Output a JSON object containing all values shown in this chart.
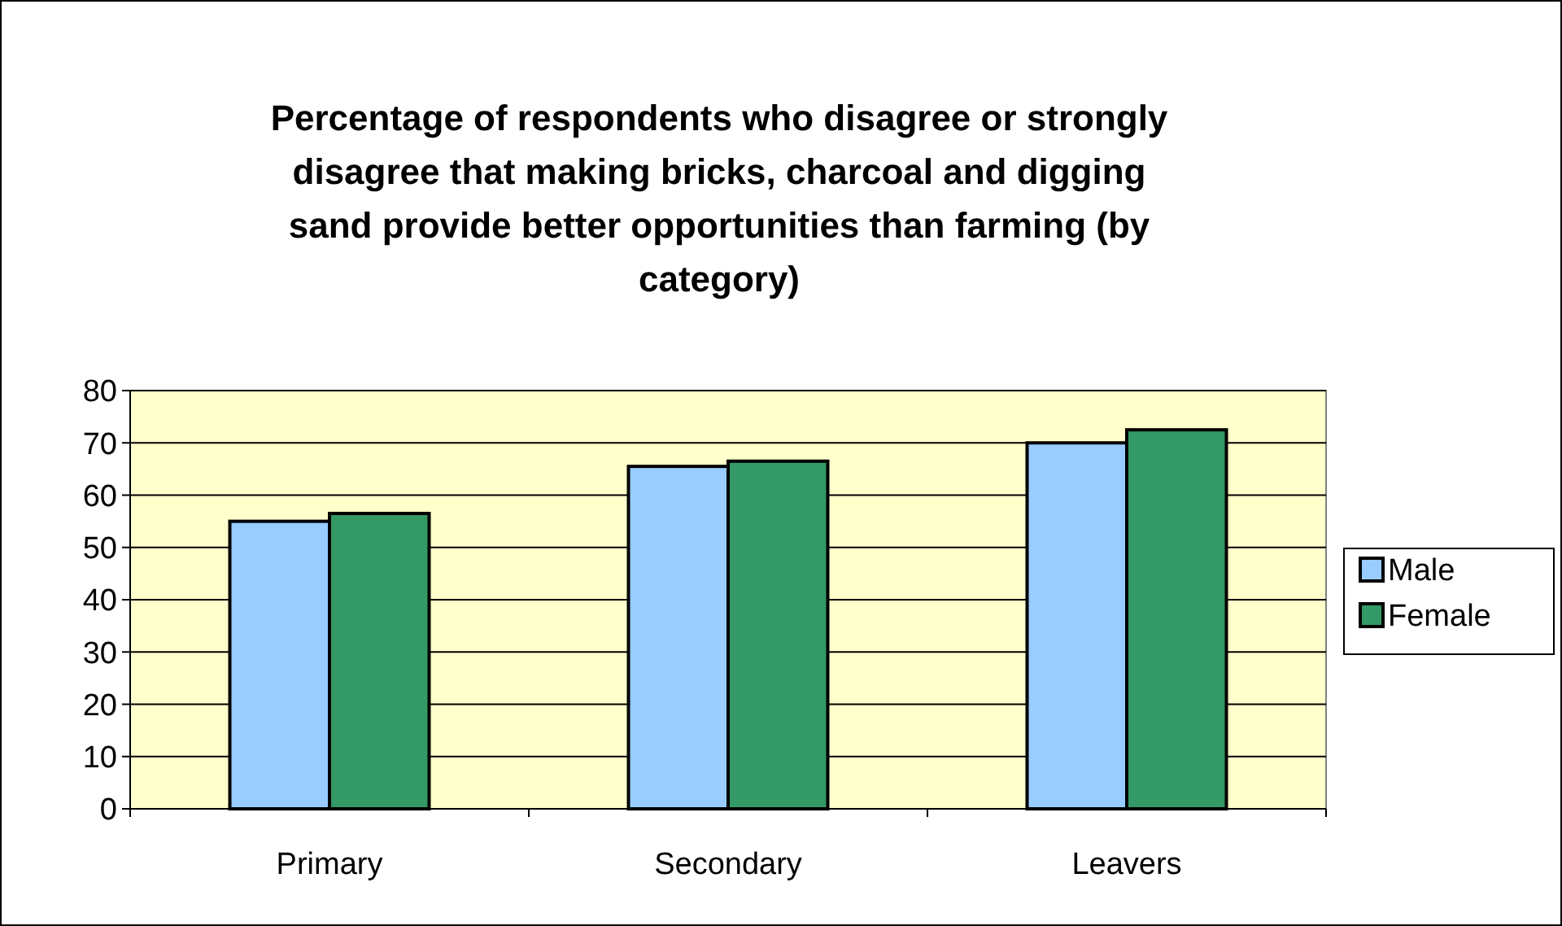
{
  "chart_data": {
    "type": "bar",
    "title": "Percentage of respondents who disagree or strongly disagree that making bricks, charcoal and digging sand provide better opportunities than farming (by category)",
    "categories": [
      "Primary",
      "Secondary",
      "Leavers"
    ],
    "series": [
      {
        "name": "Male",
        "color": "#99ccff",
        "values": [
          55,
          65.5,
          70
        ]
      },
      {
        "name": "Female",
        "color": "#339966",
        "values": [
          56.5,
          66.5,
          72.5
        ]
      }
    ],
    "ylim": [
      0,
      80
    ],
    "yticks": [
      0,
      10,
      20,
      30,
      40,
      50,
      60,
      70,
      80
    ],
    "grid": "y",
    "legend": "right"
  }
}
